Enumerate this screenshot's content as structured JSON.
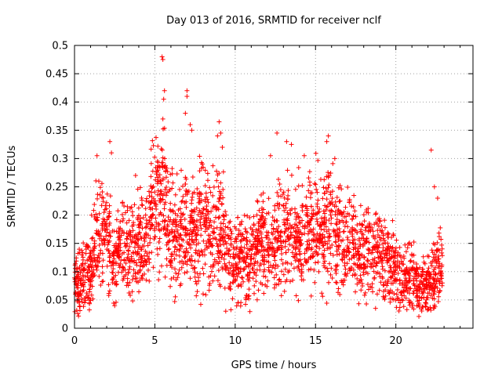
{
  "chart_data": {
    "type": "scatter",
    "title": "Day 013 of 2016, SRMTID for receiver nclf",
    "xlabel": "GPS time / hours",
    "ylabel": "SRMTID / TECUs",
    "xlim": [
      0,
      24.8
    ],
    "ylim": [
      0,
      0.5
    ],
    "xticks": [
      0,
      5,
      10,
      15,
      20
    ],
    "yticks": [
      0,
      0.05,
      0.1,
      0.15,
      0.2,
      0.25,
      0.3,
      0.35,
      0.4,
      0.45,
      0.5
    ],
    "grid": true,
    "marker": "+",
    "color": "#ff0000",
    "trend": [
      [
        0.0,
        0.08
      ],
      [
        0.5,
        0.09
      ],
      [
        1.0,
        0.1
      ],
      [
        1.5,
        0.17
      ],
      [
        2.0,
        0.18
      ],
      [
        2.5,
        0.12
      ],
      [
        3.0,
        0.15
      ],
      [
        3.5,
        0.14
      ],
      [
        4.0,
        0.14
      ],
      [
        4.5,
        0.17
      ],
      [
        5.0,
        0.22
      ],
      [
        5.5,
        0.24
      ],
      [
        6.0,
        0.17
      ],
      [
        6.5,
        0.16
      ],
      [
        7.0,
        0.19
      ],
      [
        7.5,
        0.17
      ],
      [
        8.0,
        0.19
      ],
      [
        8.5,
        0.17
      ],
      [
        9.0,
        0.19
      ],
      [
        9.5,
        0.13
      ],
      [
        10.0,
        0.11
      ],
      [
        10.5,
        0.13
      ],
      [
        11.0,
        0.12
      ],
      [
        11.5,
        0.14
      ],
      [
        12.0,
        0.15
      ],
      [
        12.5,
        0.16
      ],
      [
        13.0,
        0.17
      ],
      [
        13.5,
        0.16
      ],
      [
        14.0,
        0.17
      ],
      [
        14.5,
        0.17
      ],
      [
        15.0,
        0.18
      ],
      [
        15.5,
        0.18
      ],
      [
        16.0,
        0.17
      ],
      [
        16.5,
        0.15
      ],
      [
        17.0,
        0.14
      ],
      [
        17.5,
        0.14
      ],
      [
        18.0,
        0.14
      ],
      [
        18.5,
        0.13
      ],
      [
        19.0,
        0.14
      ],
      [
        19.5,
        0.12
      ],
      [
        20.0,
        0.1
      ],
      [
        20.5,
        0.09
      ],
      [
        21.0,
        0.09
      ],
      [
        21.5,
        0.08
      ],
      [
        22.0,
        0.07
      ],
      [
        22.5,
        0.1
      ],
      [
        22.9,
        0.11
      ]
    ],
    "outliers": [
      [
        5.45,
        0.48
      ],
      [
        5.5,
        0.475
      ],
      [
        5.6,
        0.42
      ],
      [
        5.55,
        0.405
      ],
      [
        5.5,
        0.37
      ],
      [
        7.0,
        0.42
      ],
      [
        7.0,
        0.41
      ],
      [
        7.2,
        0.36
      ],
      [
        6.9,
        0.38
      ],
      [
        7.3,
        0.35
      ],
      [
        9.0,
        0.365
      ],
      [
        9.1,
        0.345
      ],
      [
        8.9,
        0.34
      ],
      [
        9.2,
        0.32
      ],
      [
        12.6,
        0.345
      ],
      [
        13.2,
        0.33
      ],
      [
        13.5,
        0.325
      ],
      [
        15.8,
        0.34
      ],
      [
        15.7,
        0.33
      ],
      [
        22.2,
        0.315
      ],
      [
        22.4,
        0.25
      ],
      [
        22.6,
        0.23
      ],
      [
        2.2,
        0.33
      ],
      [
        2.3,
        0.31
      ],
      [
        1.4,
        0.305
      ],
      [
        3.8,
        0.27
      ],
      [
        12.2,
        0.305
      ],
      [
        14.3,
        0.305
      ],
      [
        16.2,
        0.3
      ]
    ]
  }
}
